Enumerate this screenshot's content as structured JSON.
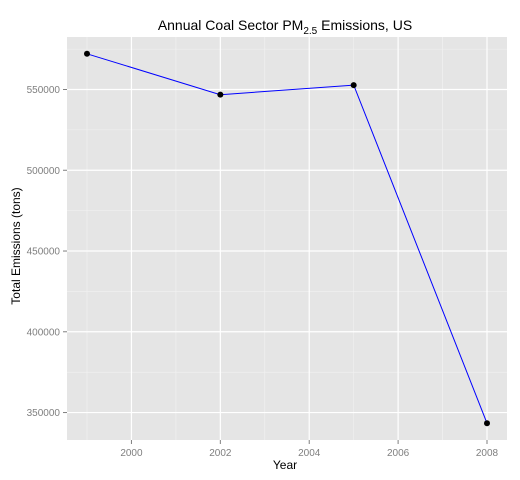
{
  "chart_data": {
    "type": "line",
    "title": {
      "main": "Annual Coal Sector PM",
      "subscript": "2.5",
      "suffix": " Emissions, US"
    },
    "xlabel": "Year",
    "ylabel": "Total Emissions (tons)",
    "xlim": [
      1998.55,
      2008.45
    ],
    "ylim": [
      333000,
      582500
    ],
    "x_ticks": [
      2000,
      2002,
      2004,
      2006,
      2008
    ],
    "x_tick_labels": [
      "2000",
      "2002",
      "2004",
      "2006",
      "2008"
    ],
    "y_ticks": [
      350000,
      400000,
      450000,
      500000,
      550000
    ],
    "y_tick_labels": [
      "350000",
      "400000",
      "450000",
      "500000",
      "550000"
    ],
    "grid": true,
    "legend": "none",
    "series": [
      {
        "x": [
          1999,
          2002,
          2005,
          2008
        ],
        "y": [
          572100,
          546800,
          552700,
          343400
        ],
        "line_color": "#0000ff",
        "marker_color": "#000000"
      }
    ],
    "colors": {
      "panel_background": "#e5e5e5",
      "grid_major": "#ffffff",
      "grid_minor": "#f2f2f2",
      "tick_text": "#7f7f7f"
    }
  }
}
